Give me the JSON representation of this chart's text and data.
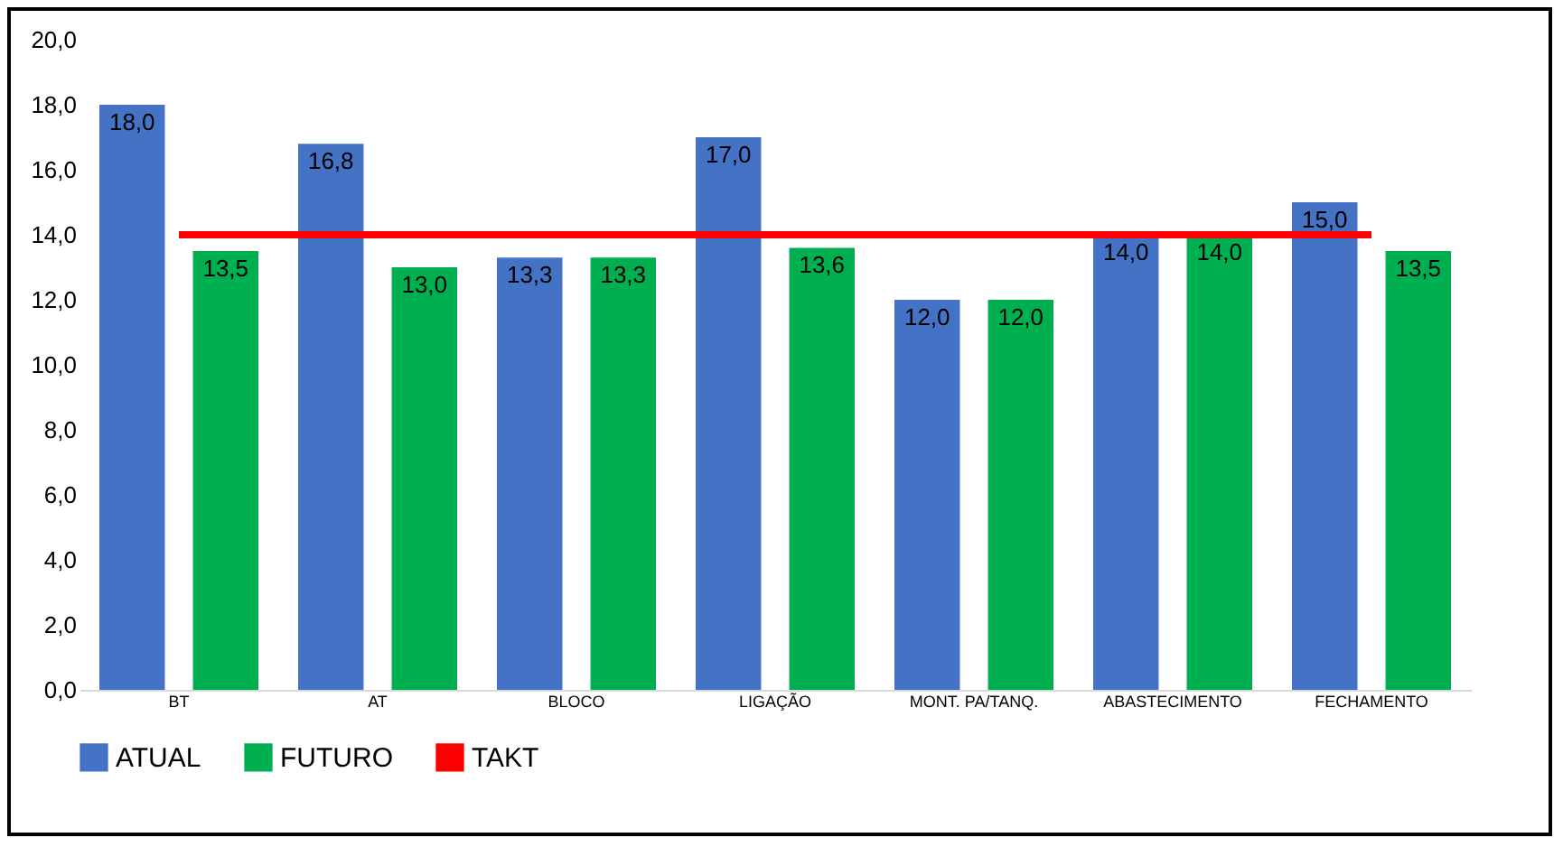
{
  "chart_data": {
    "type": "bar",
    "categories": [
      "BT",
      "AT",
      "BLOCO",
      "LIGAÇÃO",
      "MONT. PA/TANQ.",
      "ABASTECIMENTO",
      "FECHAMENTO"
    ],
    "series": [
      {
        "name": "ATUAL",
        "color": "#4472c4",
        "values": [
          18.0,
          16.8,
          13.3,
          17.0,
          12.0,
          14.0,
          15.0
        ],
        "value_labels": [
          "18,0",
          "16,8",
          "13,3",
          "17,0",
          "12,0",
          "14,0",
          "15,0"
        ]
      },
      {
        "name": "FUTURO",
        "color": "#00b050",
        "values": [
          13.5,
          13.0,
          13.3,
          13.6,
          12.0,
          14.0,
          13.5
        ],
        "value_labels": [
          "13,5",
          "13,0",
          "13,3",
          "13,6",
          "12,0",
          "14,0",
          "13,5"
        ]
      },
      {
        "name": "TAKT",
        "type": "line",
        "color": "#ff0000",
        "values": [
          14.0,
          14.0,
          14.0,
          14.0,
          14.0,
          14.0,
          14.0
        ]
      }
    ],
    "ylim": [
      0,
      20
    ],
    "yticks": [
      {
        "value": 0,
        "label": "0,0"
      },
      {
        "value": 2,
        "label": "2,0"
      },
      {
        "value": 4,
        "label": "4,0"
      },
      {
        "value": 6,
        "label": "6,0"
      },
      {
        "value": 8,
        "label": "8,0"
      },
      {
        "value": 10,
        "label": "10,0"
      },
      {
        "value": 12,
        "label": "12,0"
      },
      {
        "value": 14,
        "label": "14,0"
      },
      {
        "value": 16,
        "label": "16,0"
      },
      {
        "value": 18,
        "label": "18,0"
      },
      {
        "value": 20,
        "label": "20,0"
      }
    ],
    "grid": false,
    "legend": "bottom"
  }
}
